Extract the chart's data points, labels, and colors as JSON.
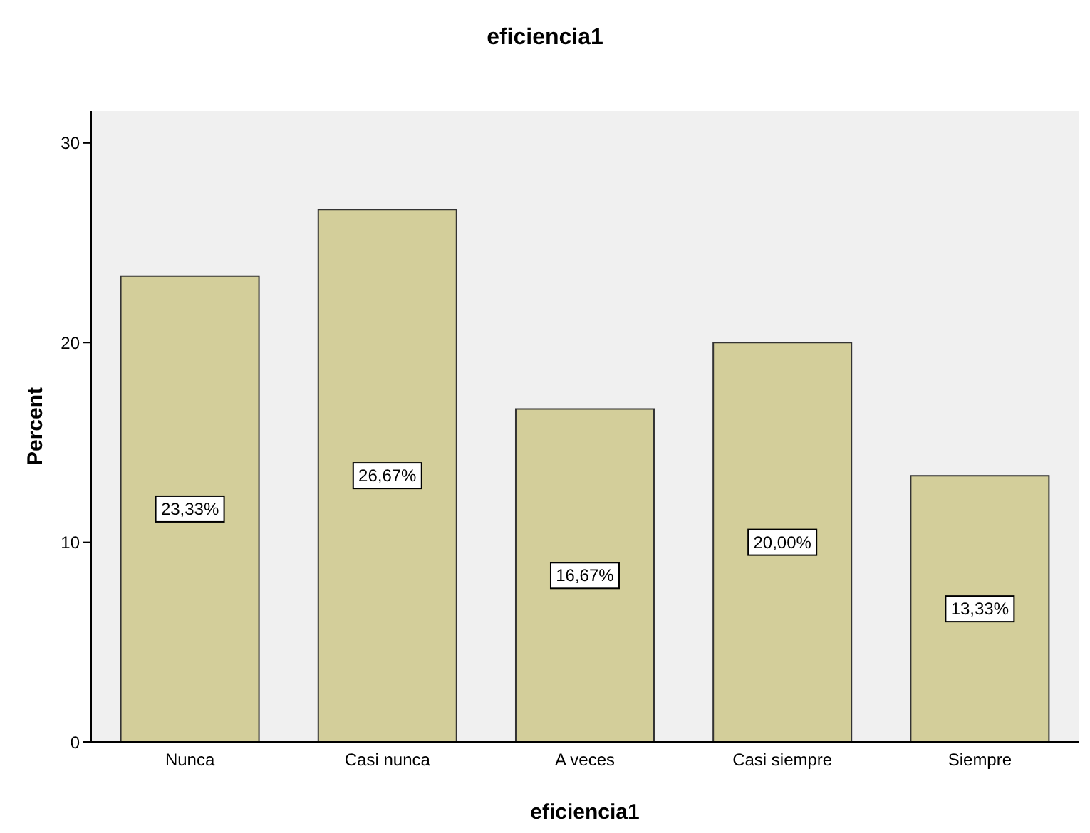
{
  "chart_data": {
    "type": "bar",
    "title": "eficiencia1",
    "xlabel": "eficiencia1",
    "ylabel": "Percent",
    "categories": [
      "Nunca",
      "Casi nunca",
      "A veces",
      "Casi siempre",
      "Siempre"
    ],
    "values": [
      23.33,
      26.67,
      16.67,
      20.0,
      13.33
    ],
    "value_labels": [
      "23,33%",
      "26,67%",
      "16,67%",
      "20,00%",
      "13,33%"
    ],
    "color": "#d3ce9a",
    "ylim": [
      0,
      31.6
    ],
    "yticks": [
      0,
      10,
      20,
      30
    ],
    "grid": false
  }
}
